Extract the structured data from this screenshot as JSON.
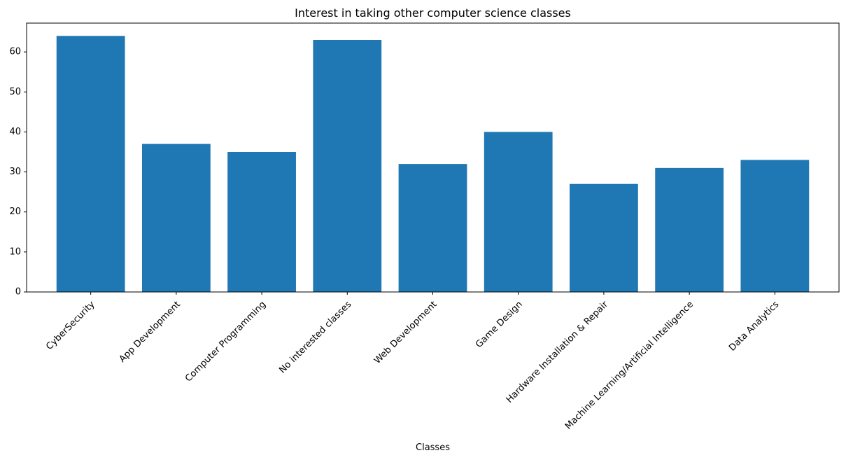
{
  "chart_data": {
    "type": "bar",
    "title": "Interest in taking other computer science classes",
    "xlabel": "Classes",
    "ylabel": "",
    "categories": [
      "CyberSecurity",
      "App Development",
      "Computer Programming",
      "No interested classes",
      "Web Development",
      "Game Design",
      "Hardware Installation & Repair",
      "Machine Learning/Artificial Intelligence",
      "Data Analytics"
    ],
    "values": [
      64,
      37,
      35,
      63,
      32,
      40,
      27,
      31,
      33
    ],
    "ylim": [
      0,
      67.2
    ],
    "yticks": [
      0,
      10,
      20,
      30,
      40,
      50,
      60
    ],
    "grid": false,
    "legend": "none",
    "colors": {
      "bar": "#1f77b4",
      "axis": "#000000",
      "background": "#ffffff"
    }
  }
}
